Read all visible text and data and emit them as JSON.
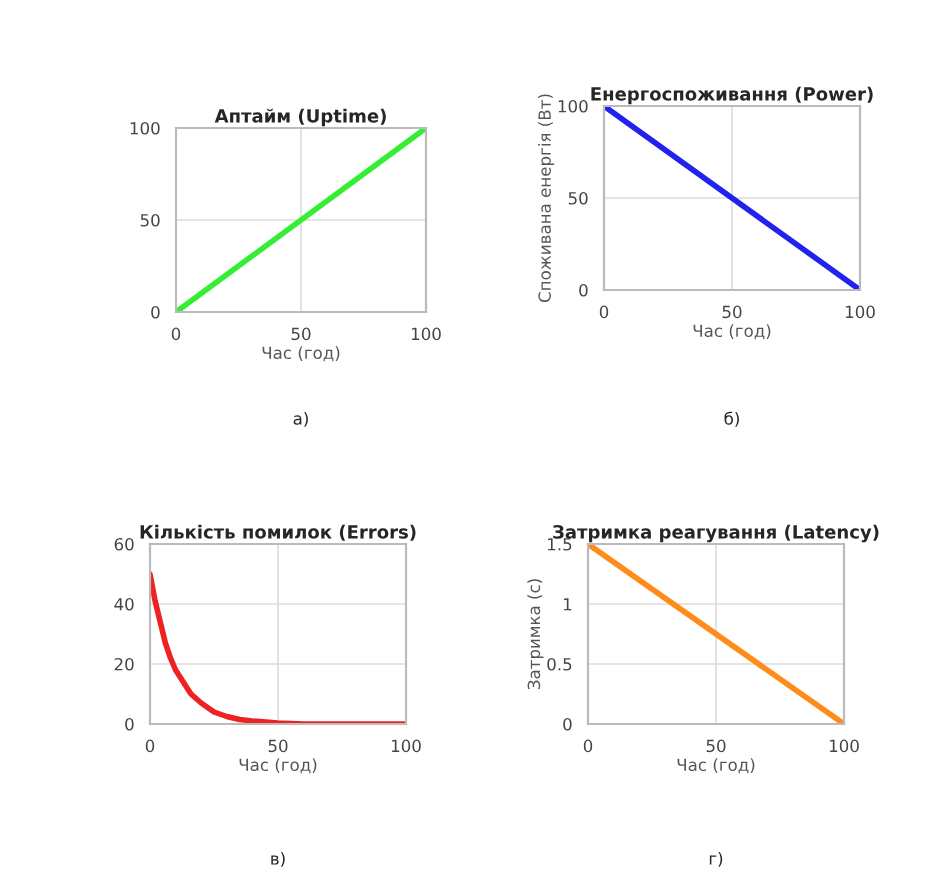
{
  "chart_data": [
    {
      "type": "line",
      "title": "Аптайм (Uptime)",
      "xlabel": "Час (год)",
      "x": [
        0,
        100
      ],
      "series": [
        {
          "color": "#33ee33",
          "values": [
            0,
            100
          ]
        }
      ],
      "xlim": [
        0,
        100
      ],
      "ylim": [
        0,
        100
      ],
      "xticks": [
        0,
        50,
        100
      ],
      "yticks": [
        0,
        50,
        100
      ],
      "grid": true,
      "annotations": [
        "а)"
      ]
    },
    {
      "type": "line",
      "title": "Енергоспоживання (Power)",
      "xlabel": "Час (год)",
      "ylabel": "Споживана енергія (Вт)",
      "x": [
        0,
        100
      ],
      "series": [
        {
          "color": "#2222ee",
          "values": [
            100,
            0
          ]
        }
      ],
      "xlim": [
        0,
        100
      ],
      "ylim": [
        0,
        100
      ],
      "xticks": [
        0,
        50,
        100
      ],
      "yticks": [
        0,
        50,
        100
      ],
      "grid": true,
      "annotations": [
        "б)"
      ]
    },
    {
      "type": "line",
      "title": "Кількість помилок (Errors)",
      "xlabel": "Час (год)",
      "x": [
        0,
        2,
        4,
        6,
        8,
        10,
        13,
        16,
        20,
        25,
        30,
        35,
        40,
        50,
        60,
        70,
        80,
        100
      ],
      "series": [
        {
          "color": "#ee2222",
          "values": [
            50,
            41,
            34,
            27,
            22,
            18,
            14,
            10,
            7,
            4,
            2.5,
            1.5,
            1,
            0.3,
            0,
            0,
            0,
            0
          ]
        }
      ],
      "xlim": [
        0,
        100
      ],
      "ylim": [
        0,
        60
      ],
      "xticks": [
        0,
        50,
        100
      ],
      "yticks": [
        0,
        20,
        40,
        60
      ],
      "grid": true,
      "annotations": [
        "в)"
      ]
    },
    {
      "type": "line",
      "title": "Затримка реагування (Latency)",
      "xlabel": "Час (год)",
      "ylabel": "Затримка (с)",
      "x": [
        0,
        100
      ],
      "series": [
        {
          "color": "#ff8c1a",
          "values": [
            1.5,
            0
          ]
        }
      ],
      "xlim": [
        0,
        100
      ],
      "ylim": [
        0,
        1.5
      ],
      "xticks": [
        0,
        50,
        100
      ],
      "yticks": [
        0,
        0.5,
        1,
        1.5
      ],
      "grid": true,
      "annotations": [
        "г)"
      ]
    }
  ]
}
